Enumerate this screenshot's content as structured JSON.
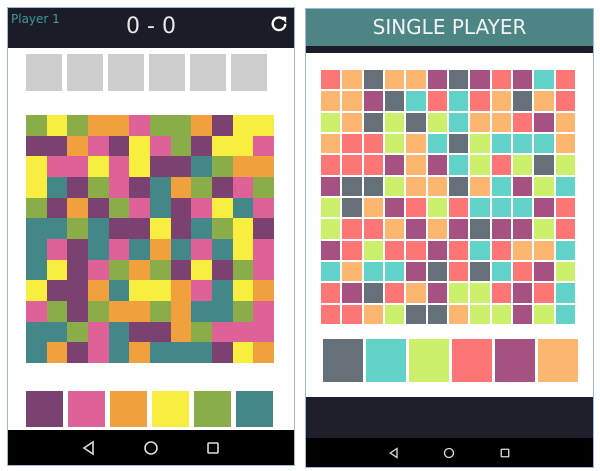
{
  "left_screen": {
    "player_label": "Player 1",
    "score": "0 - 0",
    "refresh_icon": "refresh-icon",
    "slot_count": 6,
    "colors": {
      "G": "#8aad4a",
      "Y": "#f7ee3f",
      "O": "#f0a03c",
      "P": "#de6197",
      "M": "#7a4171",
      "T": "#438789"
    },
    "grid": [
      "GYGOOPGGOMYY",
      "MMOPMYPGMYYP",
      "YPPYPYMMTGOO",
      "YTMGPMTOGMPG",
      "GMOMGPTMPYTP",
      "TTGTMMYMTGYM",
      "TPMTPTOTPTYP",
      "TYMPGOGMYMGP",
      "YMMOTYYOPTYO",
      "PGMGOOGOTTGP",
      "TTGPTMMOGPPP",
      "TOMPTOTTTMYO"
    ],
    "palette": [
      "M",
      "P",
      "O",
      "Y",
      "G",
      "T"
    ]
  },
  "right_screen": {
    "title": "SINGLE PLAYER",
    "colors": {
      "R": "#fd7676",
      "A": "#fdb66f",
      "S": "#667079",
      "V": "#a55282",
      "C": "#62d2c9",
      "L": "#cdf06c"
    },
    "grid": [
      "RASAAVSVRVCR",
      "AAVSCRCRASAR",
      "LASLSLCAARVA",
      "ARRLACSLCCCA",
      "RRRVAVCLRLSL",
      "VSSLAASACVLC",
      "LSAVRLRCCCVR",
      "LRRAVAVSVVLR",
      "VRLRRVRCRAAC",
      "CACCVSRSCRVL",
      "RVSRAVLLRVRC",
      "RRALSSALLVLC"
    ],
    "palette": [
      "S",
      "C",
      "L",
      "R",
      "V",
      "A"
    ]
  },
  "nav": {
    "back_icon": "back-icon",
    "home_icon": "home-icon",
    "recents_icon": "recents-icon"
  }
}
